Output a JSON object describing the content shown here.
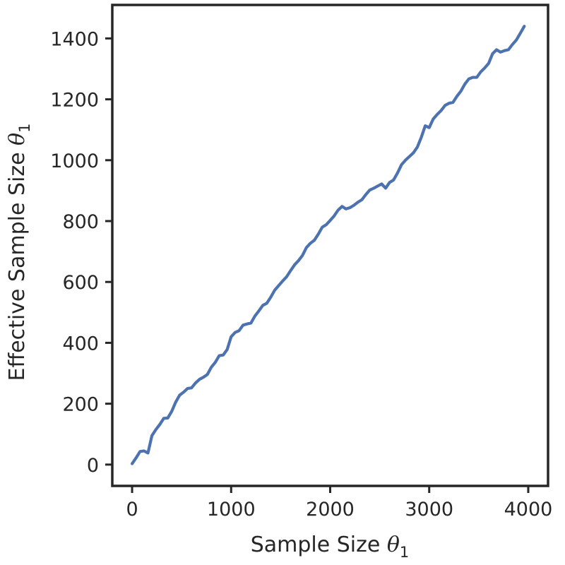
{
  "chart_data": {
    "type": "line",
    "xlabel": "Sample Size",
    "ylabel": "Effective Sample Size",
    "axis_var": "θ",
    "axis_var_sub": "1",
    "xlim": [
      -200,
      4200
    ],
    "ylim": [
      -70,
      1510
    ],
    "x_ticks": [
      0,
      1000,
      2000,
      3000,
      4000
    ],
    "y_ticks": [
      0,
      200,
      400,
      600,
      800,
      1000,
      1200,
      1400
    ],
    "grid": false,
    "line_color": "#4c72b0",
    "axis_color": "#262626",
    "series": [
      {
        "x": [
          0,
          40,
          80,
          120,
          160,
          200,
          240,
          280,
          320,
          360,
          400,
          440,
          480,
          520,
          560,
          600,
          640,
          680,
          720,
          760,
          800,
          840,
          880,
          920,
          960,
          1000,
          1040,
          1080,
          1120,
          1160,
          1200,
          1240,
          1280,
          1320,
          1360,
          1400,
          1440,
          1480,
          1520,
          1560,
          1600,
          1640,
          1680,
          1720,
          1760,
          1800,
          1840,
          1880,
          1920,
          1960,
          2000,
          2040,
          2080,
          2120,
          2160,
          2200,
          2240,
          2280,
          2320,
          2360,
          2400,
          2440,
          2480,
          2520,
          2560,
          2600,
          2640,
          2680,
          2720,
          2760,
          2800,
          2840,
          2880,
          2920,
          2960,
          3000,
          3040,
          3080,
          3120,
          3160,
          3200,
          3240,
          3280,
          3320,
          3360,
          3400,
          3440,
          3480,
          3520,
          3560,
          3600,
          3640,
          3680,
          3720,
          3760,
          3800,
          3840,
          3880,
          3920,
          3960
        ],
        "y": [
          3,
          22,
          43,
          45,
          38,
          95,
          115,
          132,
          152,
          153,
          175,
          205,
          228,
          238,
          250,
          252,
          268,
          280,
          287,
          296,
          320,
          336,
          358,
          360,
          378,
          420,
          434,
          440,
          458,
          462,
          465,
          488,
          505,
          523,
          530,
          550,
          573,
          588,
          603,
          617,
          637,
          656,
          670,
          687,
          713,
          727,
          737,
          757,
          780,
          788,
          802,
          817,
          836,
          848,
          840,
          844,
          852,
          862,
          870,
          887,
          902,
          908,
          915,
          922,
          908,
          927,
          935,
          958,
          985,
          1000,
          1012,
          1024,
          1043,
          1075,
          1113,
          1107,
          1135,
          1150,
          1163,
          1180,
          1187,
          1190,
          1210,
          1227,
          1250,
          1267,
          1272,
          1272,
          1290,
          1303,
          1318,
          1350,
          1363,
          1355,
          1360,
          1363,
          1380,
          1395,
          1417,
          1440
        ]
      }
    ]
  }
}
